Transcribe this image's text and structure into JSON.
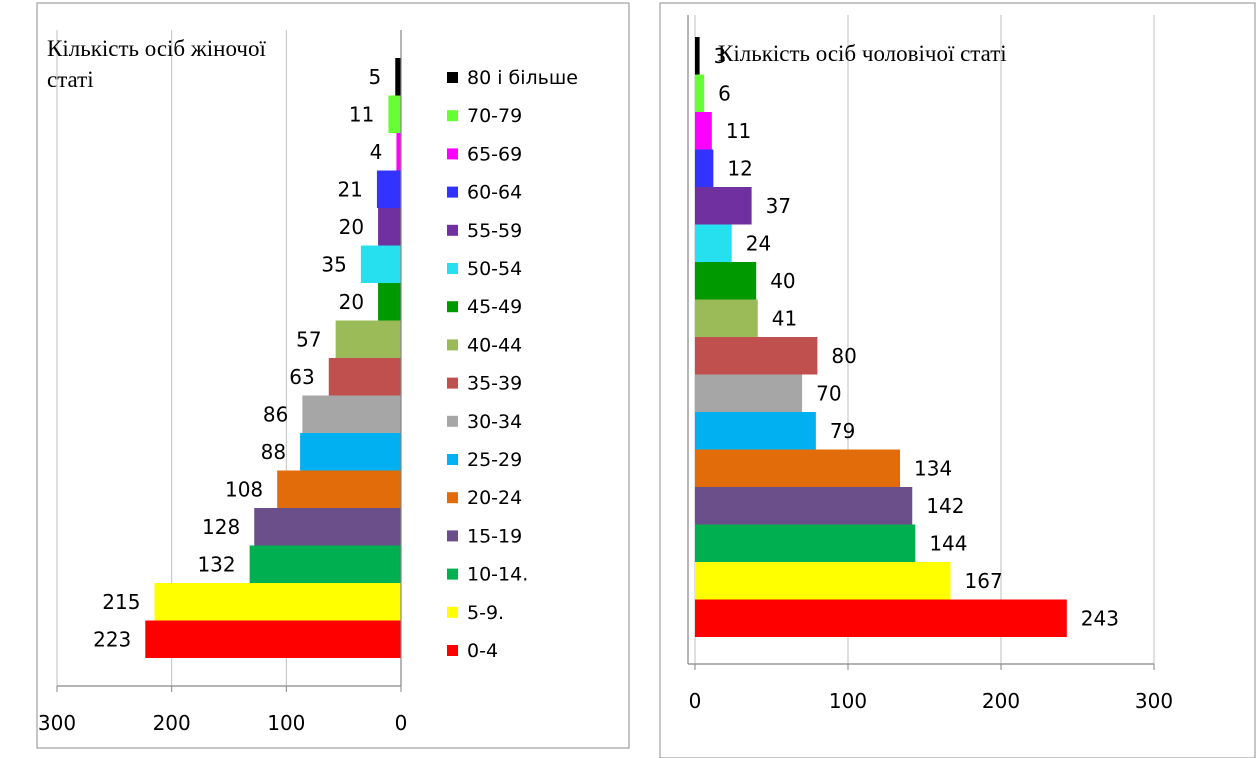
{
  "chart_data": [
    {
      "type": "bar",
      "orientation": "horizontal-reversed",
      "title": "Кількість осіб жіночої статі",
      "categories": [
        "0-4",
        "5-9.",
        "10-14.",
        "15-19",
        "20-24",
        "25-29",
        "30-34",
        "35-39",
        "40-44",
        "45-49",
        "50-54",
        "55-59",
        "60-64",
        "65-69",
        "70-79",
        "80 і більше"
      ],
      "values": [
        223,
        215,
        132,
        128,
        108,
        88,
        86,
        63,
        57,
        20,
        35,
        20,
        21,
        4,
        11,
        5
      ],
      "colors": [
        "#ff0000",
        "#ffff00",
        "#00b050",
        "#6a4f8a",
        "#e36c0a",
        "#00b0f0",
        "#a6a6a6",
        "#c0504d",
        "#9bbb59",
        "#009900",
        "#26e0f0",
        "#7030a0",
        "#3333ff",
        "#ff00ff",
        "#66ff33",
        "#000000"
      ],
      "xlim": [
        300,
        0
      ],
      "xticks": [
        "300",
        "200",
        "100",
        "0"
      ],
      "grid": true,
      "legend": "right",
      "legend_order": [
        "80 і більше",
        "70-79",
        "65-69",
        "60-64",
        "55-59",
        "50-54",
        "45-49",
        "40-44",
        "35-39",
        "30-34",
        "25-29",
        "20-24",
        "15-19",
        "10-14.",
        "5-9.",
        "0-4"
      ]
    },
    {
      "type": "bar",
      "orientation": "horizontal",
      "title": "Кількість осіб чоловічої статі",
      "categories": [
        "0-4",
        "5-9.",
        "10-14.",
        "15-19",
        "20-24",
        "25-29",
        "30-34",
        "35-39",
        "40-44",
        "45-49",
        "50-54",
        "55-59",
        "60-64",
        "65-69",
        "70-79",
        "80 і більше"
      ],
      "values": [
        243,
        167,
        144,
        142,
        134,
        79,
        70,
        80,
        41,
        40,
        24,
        37,
        12,
        11,
        6,
        3
      ],
      "colors": [
        "#ff0000",
        "#ffff00",
        "#00b050",
        "#6a4f8a",
        "#e36c0a",
        "#00b0f0",
        "#a6a6a6",
        "#c0504d",
        "#9bbb59",
        "#009900",
        "#26e0f0",
        "#7030a0",
        "#3333ff",
        "#ff00ff",
        "#66ff33",
        "#000000"
      ],
      "xlim": [
        0,
        300
      ],
      "xticks": [
        "0",
        "100",
        "200",
        "300"
      ],
      "grid": true
    }
  ]
}
